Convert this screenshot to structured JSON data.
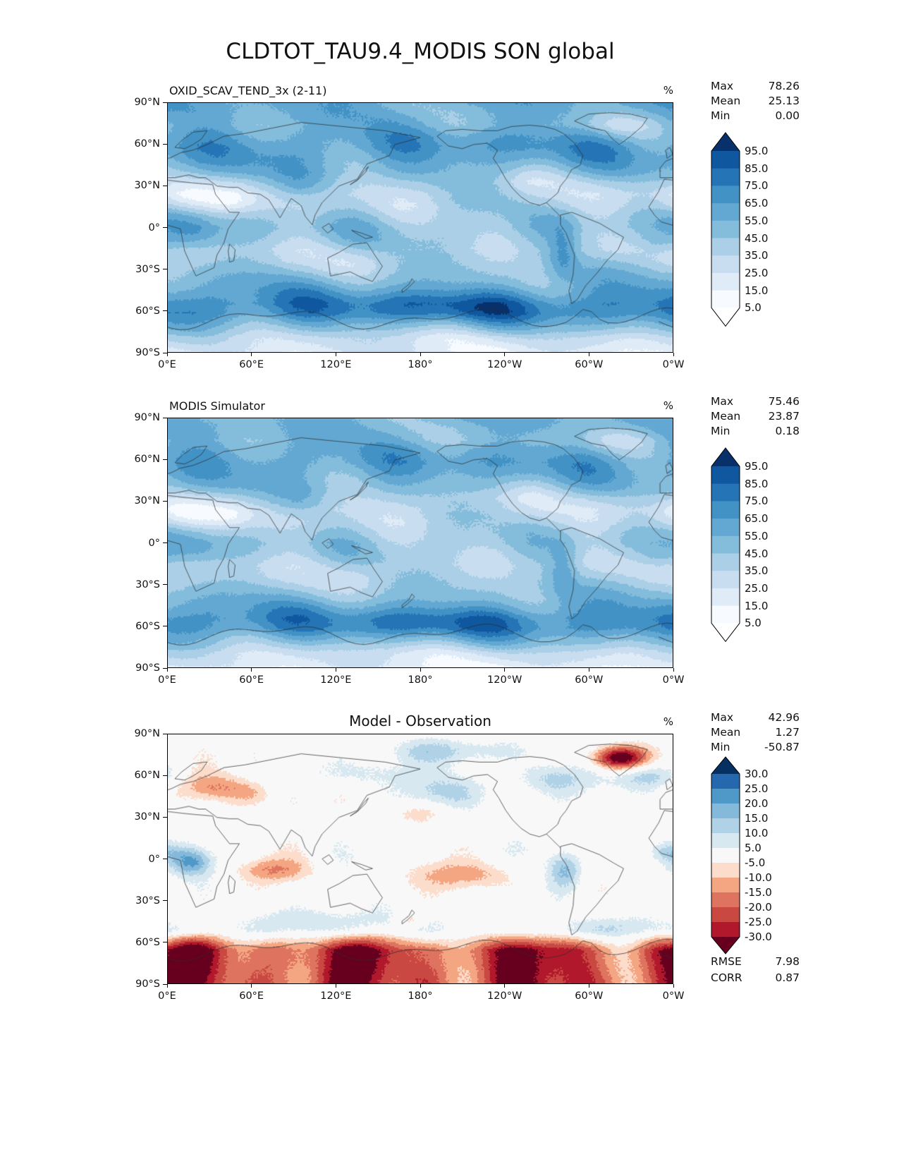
{
  "title": "CLDTOT_TAU9.4_MODIS SON global",
  "x_tick_labels": [
    "0°E",
    "60°E",
    "120°E",
    "180°",
    "120°W",
    "60°W",
    "0°W"
  ],
  "y_tick_labels": [
    "90°N",
    "60°N",
    "30°N",
    "0°",
    "30°S",
    "60°S",
    "90°S"
  ],
  "chart_data": [
    {
      "type": "heatmap",
      "subtype": "filled-contour-global-map",
      "title": "OXID_SCAV_TEND_3x (2-11)",
      "units": "%",
      "lon_range_deg": [
        0,
        360
      ],
      "lat_range_deg": [
        -90,
        90
      ],
      "stats": [
        {
          "label": "Max",
          "value": "78.26"
        },
        {
          "label": "Mean",
          "value": "25.13"
        },
        {
          "label": "Min",
          "value": "0.00"
        }
      ],
      "colorbar": {
        "colormap": "Blues",
        "levels": [
          95.0,
          85.0,
          75.0,
          65.0,
          55.0,
          45.0,
          35.0,
          25.0,
          15.0,
          5.0
        ],
        "band_colors": [
          "#0f579f",
          "#2474b6",
          "#4292c6",
          "#62a8d2",
          "#84bcdb",
          "#abcfe6",
          "#c9ddf0",
          "#dfecf7",
          "#f7fbff"
        ],
        "over_color": "#08306b",
        "under_color": "#ffffff"
      }
    },
    {
      "type": "heatmap",
      "subtype": "filled-contour-global-map",
      "title": "MODIS Simulator",
      "units": "%",
      "lon_range_deg": [
        0,
        360
      ],
      "lat_range_deg": [
        -90,
        90
      ],
      "stats": [
        {
          "label": "Max",
          "value": "75.46"
        },
        {
          "label": "Mean",
          "value": "23.87"
        },
        {
          "label": "Min",
          "value": "0.18"
        }
      ],
      "colorbar": {
        "colormap": "Blues",
        "levels": [
          95.0,
          85.0,
          75.0,
          65.0,
          55.0,
          45.0,
          35.0,
          25.0,
          15.0,
          5.0
        ],
        "band_colors": [
          "#0f579f",
          "#2474b6",
          "#4292c6",
          "#62a8d2",
          "#84bcdb",
          "#abcfe6",
          "#c9ddf0",
          "#dfecf7",
          "#f7fbff"
        ],
        "over_color": "#08306b",
        "under_color": "#ffffff"
      }
    },
    {
      "type": "heatmap",
      "subtype": "filled-contour-global-map-difference",
      "title": "Model - Observation",
      "units": "%",
      "lon_range_deg": [
        0,
        360
      ],
      "lat_range_deg": [
        -90,
        90
      ],
      "stats": [
        {
          "label": "Max",
          "value": "42.96"
        },
        {
          "label": "Mean",
          "value": "1.27"
        },
        {
          "label": "Min",
          "value": "-50.87"
        }
      ],
      "extra_stats": [
        {
          "label": "RMSE",
          "value": "7.98"
        },
        {
          "label": "CORR",
          "value": "0.87"
        }
      ],
      "colorbar": {
        "colormap": "RdBu",
        "levels": [
          30.0,
          25.0,
          20.0,
          15.0,
          10.0,
          5.0,
          -5.0,
          -10.0,
          -15.0,
          -20.0,
          -25.0,
          -30.0
        ],
        "band_colors": [
          "#2568ae",
          "#4f99c8",
          "#85b9da",
          "#b0d2e7",
          "#d7e8f1",
          "#f8f8f8",
          "#fcdccb",
          "#f4a582",
          "#de735f",
          "#ca4842",
          "#b2182b"
        ],
        "over_color": "#053061",
        "under_color": "#67001f"
      }
    }
  ]
}
